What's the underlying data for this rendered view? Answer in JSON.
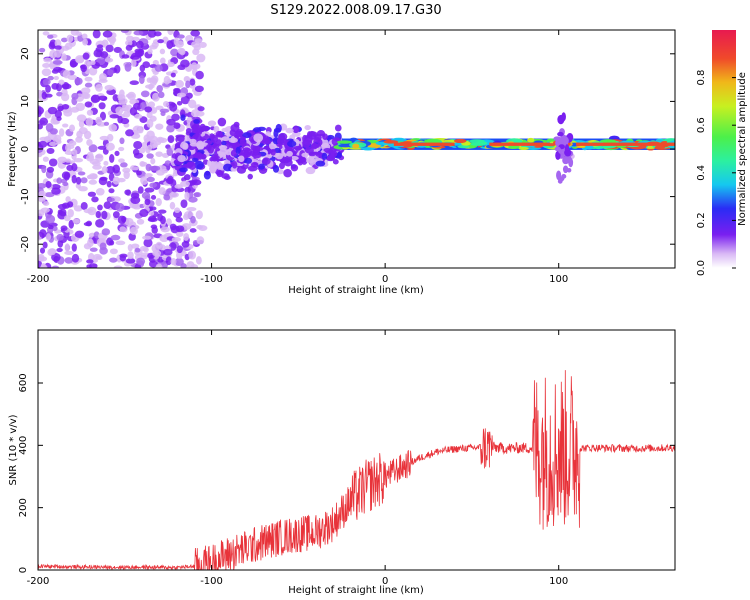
{
  "title": "S129.2022.008.09.17.G30",
  "colors": {
    "snr_line": "#e8333a",
    "spectrum_palette": [
      "#ffffff",
      "#d9b8f5",
      "#a566f0",
      "#7a1ff0",
      "#3a1cf5",
      "#1a4df5",
      "#15c8f0",
      "#2cf0a0",
      "#4cf04a",
      "#c8f020",
      "#f0b81a",
      "#f04a2a",
      "#e81a50"
    ]
  },
  "chart_data": [
    {
      "type": "heatmap",
      "xlabel": "Height of straight line (km)",
      "ylabel": "Frequency (Hz)",
      "xlim": [
        -200,
        167
      ],
      "ylim": [
        -25,
        25
      ],
      "xticks": [
        -200,
        -100,
        0,
        100
      ],
      "yticks": [
        -20,
        -10,
        0,
        10,
        20
      ],
      "colorbar": {
        "label": "Normalized spectral amplitude",
        "range": [
          0,
          1
        ],
        "ticks": [
          "0.0",
          "0.2",
          "0.4",
          "0.6",
          "0.8"
        ]
      },
      "bands": [
        {
          "x_range": [
            -200,
            -120
          ],
          "freq_spread_hz": 25,
          "mean_amplitude": 0.12
        },
        {
          "x_range": [
            -120,
            -25
          ],
          "freq_spread_hz": 7,
          "mean_amplitude": 0.2
        },
        {
          "x_range": [
            -25,
            167
          ],
          "freq_center_hz": 1,
          "freq_spread_hz": 1.5,
          "mean_amplitude": 0.9
        }
      ]
    },
    {
      "type": "line",
      "xlabel": "Height of straight line (km)",
      "ylabel": "SNR (10 * v/v)",
      "xlim": [
        -200,
        167
      ],
      "ylim": [
        0,
        770
      ],
      "xticks": [
        -200,
        -100,
        0,
        100
      ],
      "yticks": [
        0,
        200,
        400,
        600
      ],
      "series": [
        {
          "x": [
            -200,
            -180,
            -160,
            -140,
            -120,
            -110,
            -100,
            -90,
            -80,
            -70,
            -60,
            -50,
            -40,
            -30,
            -20,
            -10,
            0,
            10,
            20,
            30,
            40,
            50,
            60,
            70,
            80,
            90,
            100,
            110,
            120,
            140,
            167
          ],
          "y": [
            12,
            10,
            9,
            9,
            8,
            12,
            25,
            50,
            70,
            90,
            105,
            115,
            120,
            150,
            220,
            270,
            300,
            330,
            360,
            380,
            388,
            392,
            395,
            390,
            392,
            390,
            385,
            390,
            392,
            390,
            392
          ]
        }
      ]
    }
  ]
}
